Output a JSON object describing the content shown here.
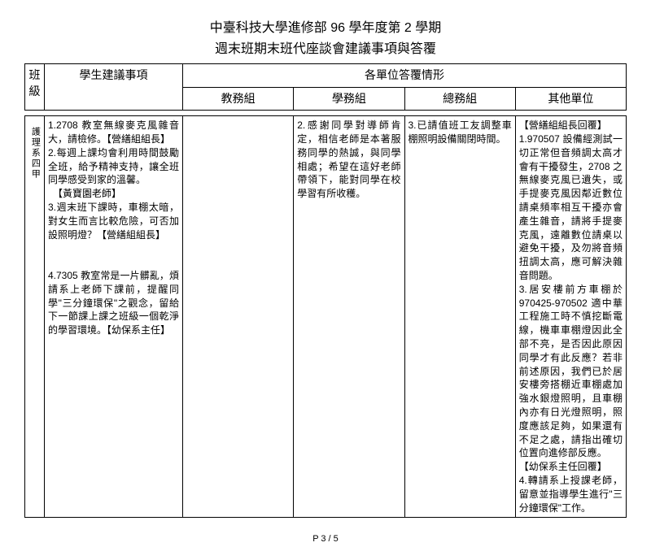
{
  "title_line1": "中臺科技大學進修部 96 學年度第 2 學期",
  "title_line2": "週末班期末班代座談會建議事項與答覆",
  "headers": {
    "class": "班級",
    "suggest": "學生建議事項",
    "units_group": "各單位答覆情形",
    "unit1": "教務組",
    "unit2": "學務組",
    "unit3": "總務組",
    "unit4": "其他單位"
  },
  "row": {
    "class_label": "護理系四甲",
    "suggest": "1.2708 教室無線麥克風雜音大，請檢修。【營繕組組長】\n2.每週上課均會利用時間鼓勵全班，給予精神支持，讓全班同學感受到家的溫馨。\n　【黃寶園老師】\n3.週末班下課時，車棚太暗，對女生而言比較危險，可否加設照明燈？【營繕組組長】\n\n4.7305 教室常是一片髒亂，煩請系上老師下課前，提醒同學\"三分鐘環保\"之觀念，留給下一節課上課之班級一個乾淨的學習環境。【幼保系主任】",
    "unit1": "",
    "unit2": "2.感謝同學對導師肯定，相信老師是本著服務同學的熱誠，與同學相處；希望在這好老師帶領下，能對同學在校學習有所收穫。",
    "unit3": "3.已請值班工友調整車棚照明設備關閉時間。",
    "unit4": "【營繕組組長回覆】\n1.970507 設備經測試一切正常但音頻調太高才會有干擾發生，2708 之無線麥克風已遺失，或手提麥克風因鄰近數位請桌頻率相互干擾亦會產生雜音，請將手提麥克風，遠離數位請桌以避免干擾，及勿將音頻扭調太高，應可解決雜音問題。\n3.居安樓前方車棚於 970425-970502 適中華工程施工時不慎挖斷電線，機車車棚燈因此全部不亮，是否因此原因同學才有此反應？若非前述原因，我們已於居安樓旁搭棚近車棚處加強水銀燈照明，且車棚內亦有日光燈照明，照度應該足夠，如果還有不足之處，請指出確切位置向進修部反應。\n【幼保系主任回覆】\n4.轉請系上授課老師，留意並指導學生進行\"三分鐘環保\"工作。"
  },
  "pager": "P 3 / 5"
}
